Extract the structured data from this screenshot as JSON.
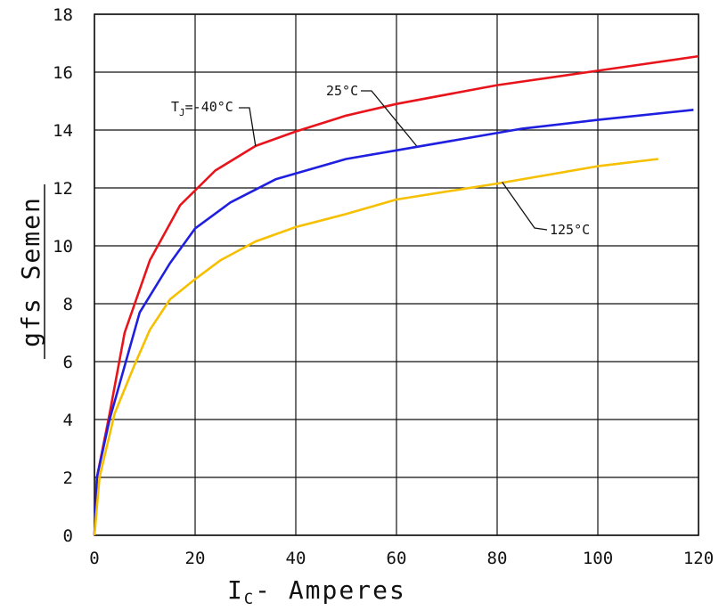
{
  "chart_data": {
    "type": "line",
    "xlabel": "I",
    "xlabel_sub": "C",
    "xlabel_suffix": "- Amperes",
    "ylabel": "gfs Semen",
    "xlim": [
      0,
      120
    ],
    "ylim": [
      0,
      18
    ],
    "xticks": [
      0,
      20,
      40,
      60,
      80,
      100,
      120
    ],
    "yticks": [
      0,
      2,
      4,
      6,
      8,
      10,
      12,
      14,
      16,
      18
    ],
    "grid": true,
    "series": [
      {
        "name": "TJ=-40°C",
        "color": "#e8141c",
        "points": [
          [
            0,
            0
          ],
          [
            0.5,
            2
          ],
          [
            3,
            4.2
          ],
          [
            6,
            7
          ],
          [
            11,
            9.5
          ],
          [
            17,
            11.4
          ],
          [
            24,
            12.6
          ],
          [
            32,
            13.45
          ],
          [
            40,
            13.95
          ],
          [
            50,
            14.5
          ],
          [
            60,
            14.9
          ],
          [
            80,
            15.55
          ],
          [
            100,
            16.05
          ],
          [
            120,
            16.55
          ]
        ]
      },
      {
        "name": "25°C",
        "color": "#1f1fe0",
        "points": [
          [
            0,
            0
          ],
          [
            0.5,
            2
          ],
          [
            3,
            4
          ],
          [
            9,
            7.7
          ],
          [
            15,
            9.4
          ],
          [
            20,
            10.6
          ],
          [
            27,
            11.5
          ],
          [
            36,
            12.3
          ],
          [
            50,
            13
          ],
          [
            60,
            13.3
          ],
          [
            85,
            14.05
          ],
          [
            100,
            14.35
          ],
          [
            119,
            14.7
          ]
        ]
      },
      {
        "name": "125°C",
        "color": "#f6c000",
        "points": [
          [
            0,
            0
          ],
          [
            1,
            2
          ],
          [
            4,
            4.2
          ],
          [
            8,
            5.9
          ],
          [
            11,
            7.1
          ],
          [
            15,
            8.15
          ],
          [
            20,
            8.85
          ],
          [
            25,
            9.5
          ],
          [
            32,
            10.15
          ],
          [
            40,
            10.65
          ],
          [
            50,
            11.1
          ],
          [
            60,
            11.6
          ],
          [
            80,
            12.15
          ],
          [
            100,
            12.75
          ],
          [
            112,
            13
          ]
        ]
      }
    ],
    "annotations": [
      {
        "text": "T",
        "sub": "J",
        "suffix": "=-40°C",
        "series": "TJ=-40°C"
      },
      {
        "text": "25°C",
        "series": "25°C"
      },
      {
        "text": "125°C",
        "series": "125°C"
      }
    ]
  }
}
